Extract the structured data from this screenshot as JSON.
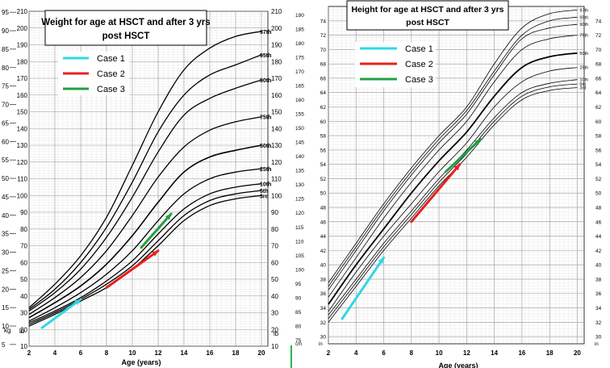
{
  "panels": {
    "left": {
      "title_line1": "Weight for age at HSCT and after 3 yrs",
      "title_line2": "post HSCT",
      "xlabel": "Age (years)",
      "unit_kg": "kg",
      "unit_lb_left": "lb",
      "unit_lb_right": "lb"
    },
    "right": {
      "title_line1": "Height for age at HSCT and after 3 yrs",
      "title_line2": "post HSCT",
      "xlabel": "Age (years)",
      "unit_cm": "cm",
      "unit_in_left": "in",
      "unit_in_right": "in"
    }
  },
  "legend": [
    {
      "label": "Case 1",
      "color": "#2fd8e6"
    },
    {
      "label": "Case 2",
      "color": "#e82020"
    },
    {
      "label": "Case 3",
      "color": "#20a040"
    }
  ],
  "chart_data": [
    {
      "type": "line",
      "title": "Weight for age at HSCT and after 3 yrs post HSCT",
      "xlabel": "Age (years)",
      "xlim": [
        2,
        20.5
      ],
      "ylim_lb": [
        10,
        210
      ],
      "x_ticks": [
        "2",
        "4",
        "6",
        "8",
        "10",
        "12",
        "14",
        "16",
        "18",
        "20"
      ],
      "y_ticks_kg": [
        "5",
        "10",
        "15",
        "20",
        "25",
        "30",
        "35",
        "40",
        "45",
        "50",
        "55",
        "60",
        "65",
        "70",
        "75",
        "80",
        "85",
        "90",
        "95"
      ],
      "y_ticks_lb": [
        "10",
        "20",
        "30",
        "40",
        "50",
        "60",
        "70",
        "80",
        "90",
        "100",
        "110",
        "120",
        "130",
        "140",
        "150",
        "160",
        "170",
        "180",
        "190",
        "200",
        "210"
      ],
      "percentiles": [
        {
          "name": "97th",
          "x": [
            2,
            4,
            6,
            8,
            10,
            12,
            14,
            16,
            18,
            20
          ],
          "y": [
            33,
            47,
            64,
            87,
            118,
            150,
            175,
            188,
            195,
            198
          ]
        },
        {
          "name": "95th",
          "x": [
            2,
            4,
            6,
            8,
            10,
            12,
            14,
            16,
            18,
            20
          ],
          "y": [
            32,
            44,
            60,
            81,
            108,
            138,
            160,
            172,
            178,
            184
          ]
        },
        {
          "name": "90th",
          "x": [
            2,
            4,
            6,
            8,
            10,
            12,
            14,
            16,
            18,
            20
          ],
          "y": [
            31,
            42,
            56,
            75,
            99,
            126,
            148,
            158,
            164,
            169
          ]
        },
        {
          "name": "75th",
          "x": [
            2,
            4,
            6,
            8,
            10,
            12,
            14,
            16,
            18,
            20
          ],
          "y": [
            29,
            39,
            51,
            67,
            88,
            111,
            129,
            139,
            144,
            147
          ]
        },
        {
          "name": "50th",
          "x": [
            2,
            4,
            6,
            8,
            10,
            12,
            14,
            16,
            18,
            20
          ],
          "y": [
            27,
            36,
            46,
            59,
            76,
            96,
            114,
            123,
            127,
            130
          ]
        },
        {
          "name": "25th",
          "x": [
            2,
            4,
            6,
            8,
            10,
            12,
            14,
            16,
            18,
            20
          ],
          "y": [
            25,
            33,
            42,
            53,
            67,
            85,
            101,
            110,
            114,
            116
          ]
        },
        {
          "name": "10th",
          "x": [
            2,
            4,
            6,
            8,
            10,
            12,
            14,
            16,
            18,
            20
          ],
          "y": [
            24,
            31,
            39,
            49,
            61,
            77,
            92,
            101,
            105,
            107
          ]
        },
        {
          "name": "5th",
          "x": [
            2,
            4,
            6,
            8,
            10,
            12,
            14,
            16,
            18,
            20
          ],
          "y": [
            23,
            30,
            38,
            47,
            58,
            73,
            88,
            97,
            101,
            103
          ]
        },
        {
          "name": "3rd",
          "x": [
            2,
            4,
            6,
            8,
            10,
            12,
            14,
            16,
            18,
            20
          ],
          "y": [
            22,
            29,
            37,
            45,
            56,
            70,
            85,
            94,
            98,
            100
          ]
        }
      ],
      "series": [
        {
          "name": "Case 1",
          "x": [
            3,
            6
          ],
          "y": [
            21,
            38
          ]
        },
        {
          "name": "Case 2",
          "x": [
            8,
            12
          ],
          "y": [
            45,
            67
          ]
        },
        {
          "name": "Case 3",
          "x": [
            10.7,
            13
          ],
          "y": [
            69,
            89
          ]
        }
      ]
    },
    {
      "type": "line",
      "title": "Height for age at HSCT and after 3 yrs post HSCT",
      "xlabel": "Age (years)",
      "xlim": [
        2,
        20.5
      ],
      "ylim_in": [
        29,
        76
      ],
      "x_ticks": [
        "2",
        "4",
        "6",
        "8",
        "10",
        "12",
        "14",
        "16",
        "18",
        "20"
      ],
      "y_ticks_cm": [
        "75",
        "80",
        "85",
        "90",
        "95",
        "100",
        "105",
        "110",
        "115",
        "120",
        "125",
        "130",
        "135",
        "140",
        "145",
        "150",
        "155",
        "160",
        "165",
        "170",
        "175",
        "180",
        "185",
        "190"
      ],
      "y_ticks_in": [
        "30",
        "32",
        "34",
        "36",
        "38",
        "40",
        "42",
        "44",
        "46",
        "48",
        "50",
        "52",
        "54",
        "56",
        "58",
        "60",
        "62",
        "64",
        "66",
        "68",
        "70",
        "72",
        "74"
      ],
      "percentiles": [
        {
          "name": "97th",
          "x": [
            2,
            4,
            6,
            8,
            10,
            12,
            14,
            16,
            18,
            20
          ],
          "y": [
            37.5,
            43,
            48.5,
            53.5,
            58,
            62,
            68,
            73,
            75,
            75.5
          ]
        },
        {
          "name": "95th",
          "x": [
            2,
            4,
            6,
            8,
            10,
            12,
            14,
            16,
            18,
            20
          ],
          "y": [
            37,
            42.5,
            48,
            53,
            57.5,
            61.5,
            67,
            72,
            74,
            74.5
          ]
        },
        {
          "name": "90th",
          "x": [
            2,
            4,
            6,
            8,
            10,
            12,
            14,
            16,
            18,
            20
          ],
          "y": [
            36.5,
            42,
            47.5,
            52.5,
            57,
            61,
            66.5,
            71.5,
            73,
            73.5
          ]
        },
        {
          "name": "75th",
          "x": [
            2,
            4,
            6,
            8,
            10,
            12,
            14,
            16,
            18,
            20
          ],
          "y": [
            35.5,
            41,
            46.5,
            51.5,
            56,
            60,
            65.5,
            70,
            71.5,
            72
          ]
        },
        {
          "name": "50th",
          "x": [
            2,
            4,
            6,
            8,
            10,
            12,
            14,
            16,
            18,
            20
          ],
          "y": [
            34.5,
            40,
            45,
            50,
            54.5,
            58.5,
            63.5,
            67.5,
            69,
            69.5
          ]
        },
        {
          "name": "25th",
          "x": [
            2,
            4,
            6,
            8,
            10,
            12,
            14,
            16,
            18,
            20
          ],
          "y": [
            33.5,
            39,
            44,
            48.5,
            53,
            57,
            62,
            65.5,
            67,
            67.5
          ]
        },
        {
          "name": "10th",
          "x": [
            2,
            4,
            6,
            8,
            10,
            12,
            14,
            16,
            18,
            20
          ],
          "y": [
            33,
            38,
            43,
            47.5,
            52,
            56,
            60.5,
            64,
            65.3,
            65.8
          ]
        },
        {
          "name": "5th",
          "x": [
            2,
            4,
            6,
            8,
            10,
            12,
            14,
            16,
            18,
            20
          ],
          "y": [
            32.5,
            37.5,
            42.5,
            47,
            51.5,
            55.5,
            60,
            63.5,
            64.8,
            65.2
          ]
        },
        {
          "name": "3rd",
          "x": [
            2,
            4,
            6,
            8,
            10,
            12,
            14,
            16,
            18,
            20
          ],
          "y": [
            32,
            37,
            42,
            46.5,
            51,
            55,
            59.5,
            63,
            64.3,
            64.7
          ]
        }
      ],
      "series": [
        {
          "name": "Case 1",
          "x": [
            3,
            6
          ],
          "y": [
            32.5,
            41
          ]
        },
        {
          "name": "Case 2",
          "x": [
            8,
            11.5
          ],
          "y": [
            46,
            54
          ]
        },
        {
          "name": "Case 3",
          "x": [
            10.5,
            13
          ],
          "y": [
            53,
            57.5
          ]
        }
      ]
    }
  ]
}
